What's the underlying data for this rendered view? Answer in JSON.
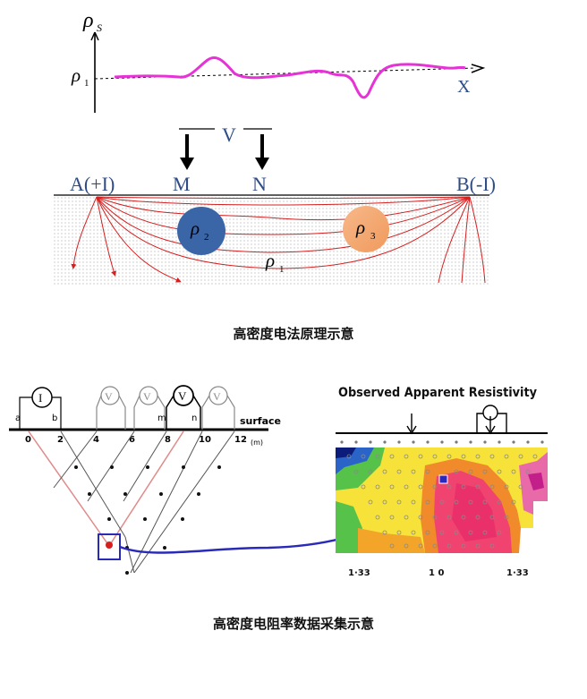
{
  "top_diagram": {
    "rho_s_symbol": "ρ",
    "rho_s_sub": "S",
    "rho1_symbol": "ρ",
    "rho1_sub": "1",
    "x_axis_label": "X",
    "voltage_label": "V",
    "electrode_a": "A(+I)",
    "electrode_m": "M",
    "electrode_n": "N",
    "electrode_b": "B(-I)",
    "body2_symbol": "ρ",
    "body2_sub": "2",
    "body3_symbol": "ρ",
    "body3_sub": "3",
    "host_symbol": "ρ",
    "host_sub": "1",
    "colors": {
      "profile": "#e633d6",
      "field_lines": "#d42020",
      "body2": "#3a66a8",
      "body3": "#f4a36a",
      "labels": "#2e4d86"
    }
  },
  "caption_1": "高密度电法原理示意",
  "bottom_diagram": {
    "left": {
      "current_meter": "I",
      "voltmeter_label": "V",
      "surface_label": "surface",
      "unit_label": "(m)",
      "electrode_ticks": [
        "0",
        "2",
        "4",
        "6",
        "8",
        "10",
        "12"
      ],
      "electrode_letters": [
        "a",
        "b",
        "m",
        "n"
      ]
    },
    "right": {
      "title": "Observed Apparent Resistivity",
      "scale_labels": [
        "1·33",
        "1 0",
        "1·33"
      ]
    }
  },
  "caption_2": "高密度电阻率数据采集示意"
}
